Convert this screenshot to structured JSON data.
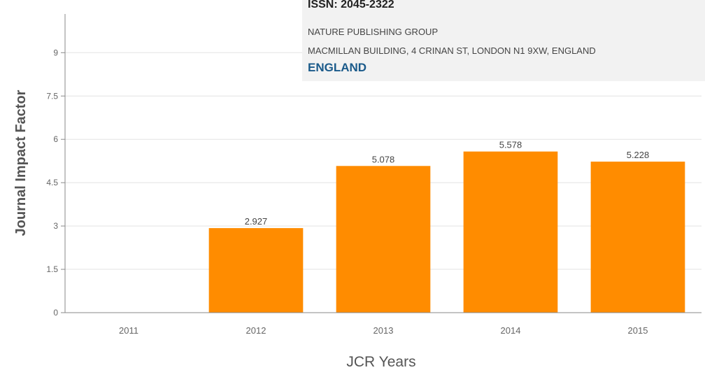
{
  "journal_info": {
    "issn": "ISSN: 2045-2322",
    "publisher": "NATURE PUBLISHING GROUP",
    "address": "MACMILLAN BUILDING, 4 CRINAN ST, LONDON N1 9XW, ENGLAND",
    "country": "ENGLAND",
    "country_color": "#1a5a8a"
  },
  "chart_data": {
    "type": "bar",
    "title": "",
    "xlabel": "JCR Years",
    "ylabel": "Journal Impact Factor",
    "categories": [
      "2011",
      "2012",
      "2013",
      "2014",
      "2015"
    ],
    "values": [
      null,
      2.927,
      5.078,
      5.578,
      5.228
    ],
    "value_labels": [
      "",
      "2.927",
      "5.078",
      "5.578",
      "5.228"
    ],
    "ylim": [
      0,
      10.5
    ],
    "yticks": [
      "0",
      "1.5",
      "3",
      "4.5",
      "6",
      "7.5",
      "9"
    ],
    "grid": true,
    "bar_color": "#ff8c00"
  }
}
